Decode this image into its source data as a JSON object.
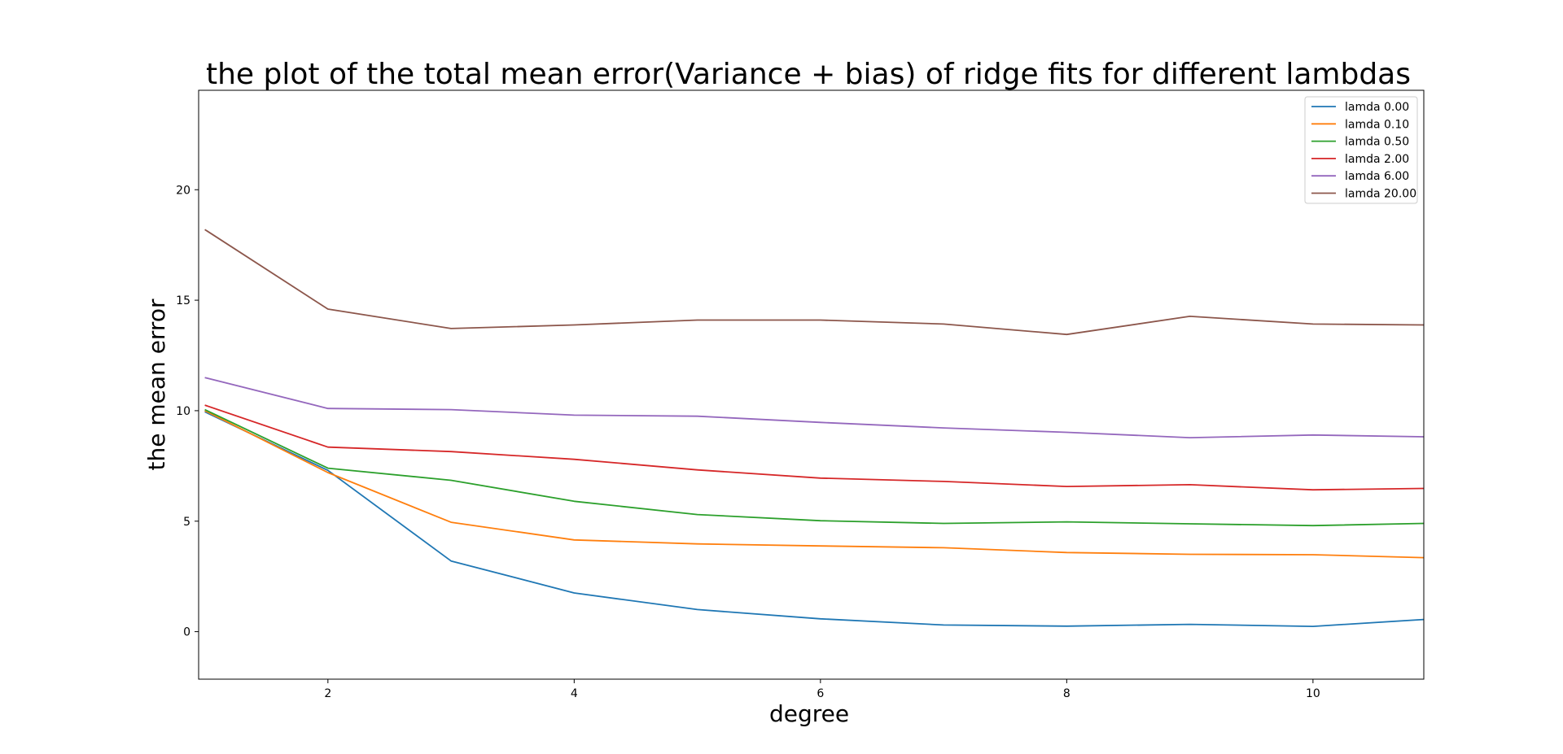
{
  "chart_data": {
    "type": "line",
    "title": "the plot of the total mean error(Variance + bias) of ridge fits for different lambdas",
    "xlabel": "degree",
    "ylabel": "the mean error",
    "xlim": [
      0.95,
      10.9
    ],
    "ylim": [
      -2.15,
      24.5
    ],
    "xticks": [
      2,
      4,
      6,
      8,
      10
    ],
    "yticks": [
      0,
      5,
      10,
      15,
      20
    ],
    "grid": false,
    "legend_position": "top-right",
    "x": [
      1,
      2,
      3,
      4,
      5,
      6,
      7,
      8,
      9,
      10,
      10.9
    ],
    "series": [
      {
        "name": "lamda 0.00",
        "color": "#1f77b4",
        "values": [
          9.95,
          7.3,
          3.2,
          1.75,
          1.0,
          0.58,
          0.3,
          0.25,
          0.33,
          0.24,
          0.55
        ]
      },
      {
        "name": "lamda 0.10",
        "color": "#ff7f0e",
        "values": [
          10.0,
          7.2,
          4.95,
          4.15,
          3.97,
          3.88,
          3.8,
          3.58,
          3.5,
          3.48,
          3.35
        ]
      },
      {
        "name": "lamda 0.50",
        "color": "#2ca02c",
        "values": [
          10.05,
          7.4,
          6.85,
          5.9,
          5.3,
          5.02,
          4.9,
          4.97,
          4.88,
          4.8,
          4.9
        ]
      },
      {
        "name": "lamda 2.00",
        "color": "#d62728",
        "values": [
          10.25,
          8.35,
          8.15,
          7.8,
          7.32,
          6.95,
          6.8,
          6.57,
          6.65,
          6.42,
          6.48
        ]
      },
      {
        "name": "lamda 6.00",
        "color": "#9467bd",
        "values": [
          11.5,
          10.1,
          10.05,
          9.8,
          9.75,
          9.47,
          9.22,
          9.02,
          8.78,
          8.9,
          8.82
        ]
      },
      {
        "name": "lamda 20.00",
        "color": "#8c564b",
        "values": [
          18.2,
          14.6,
          13.72,
          13.88,
          14.1,
          14.1,
          13.92,
          13.45,
          14.27,
          13.92,
          13.88
        ]
      }
    ]
  }
}
